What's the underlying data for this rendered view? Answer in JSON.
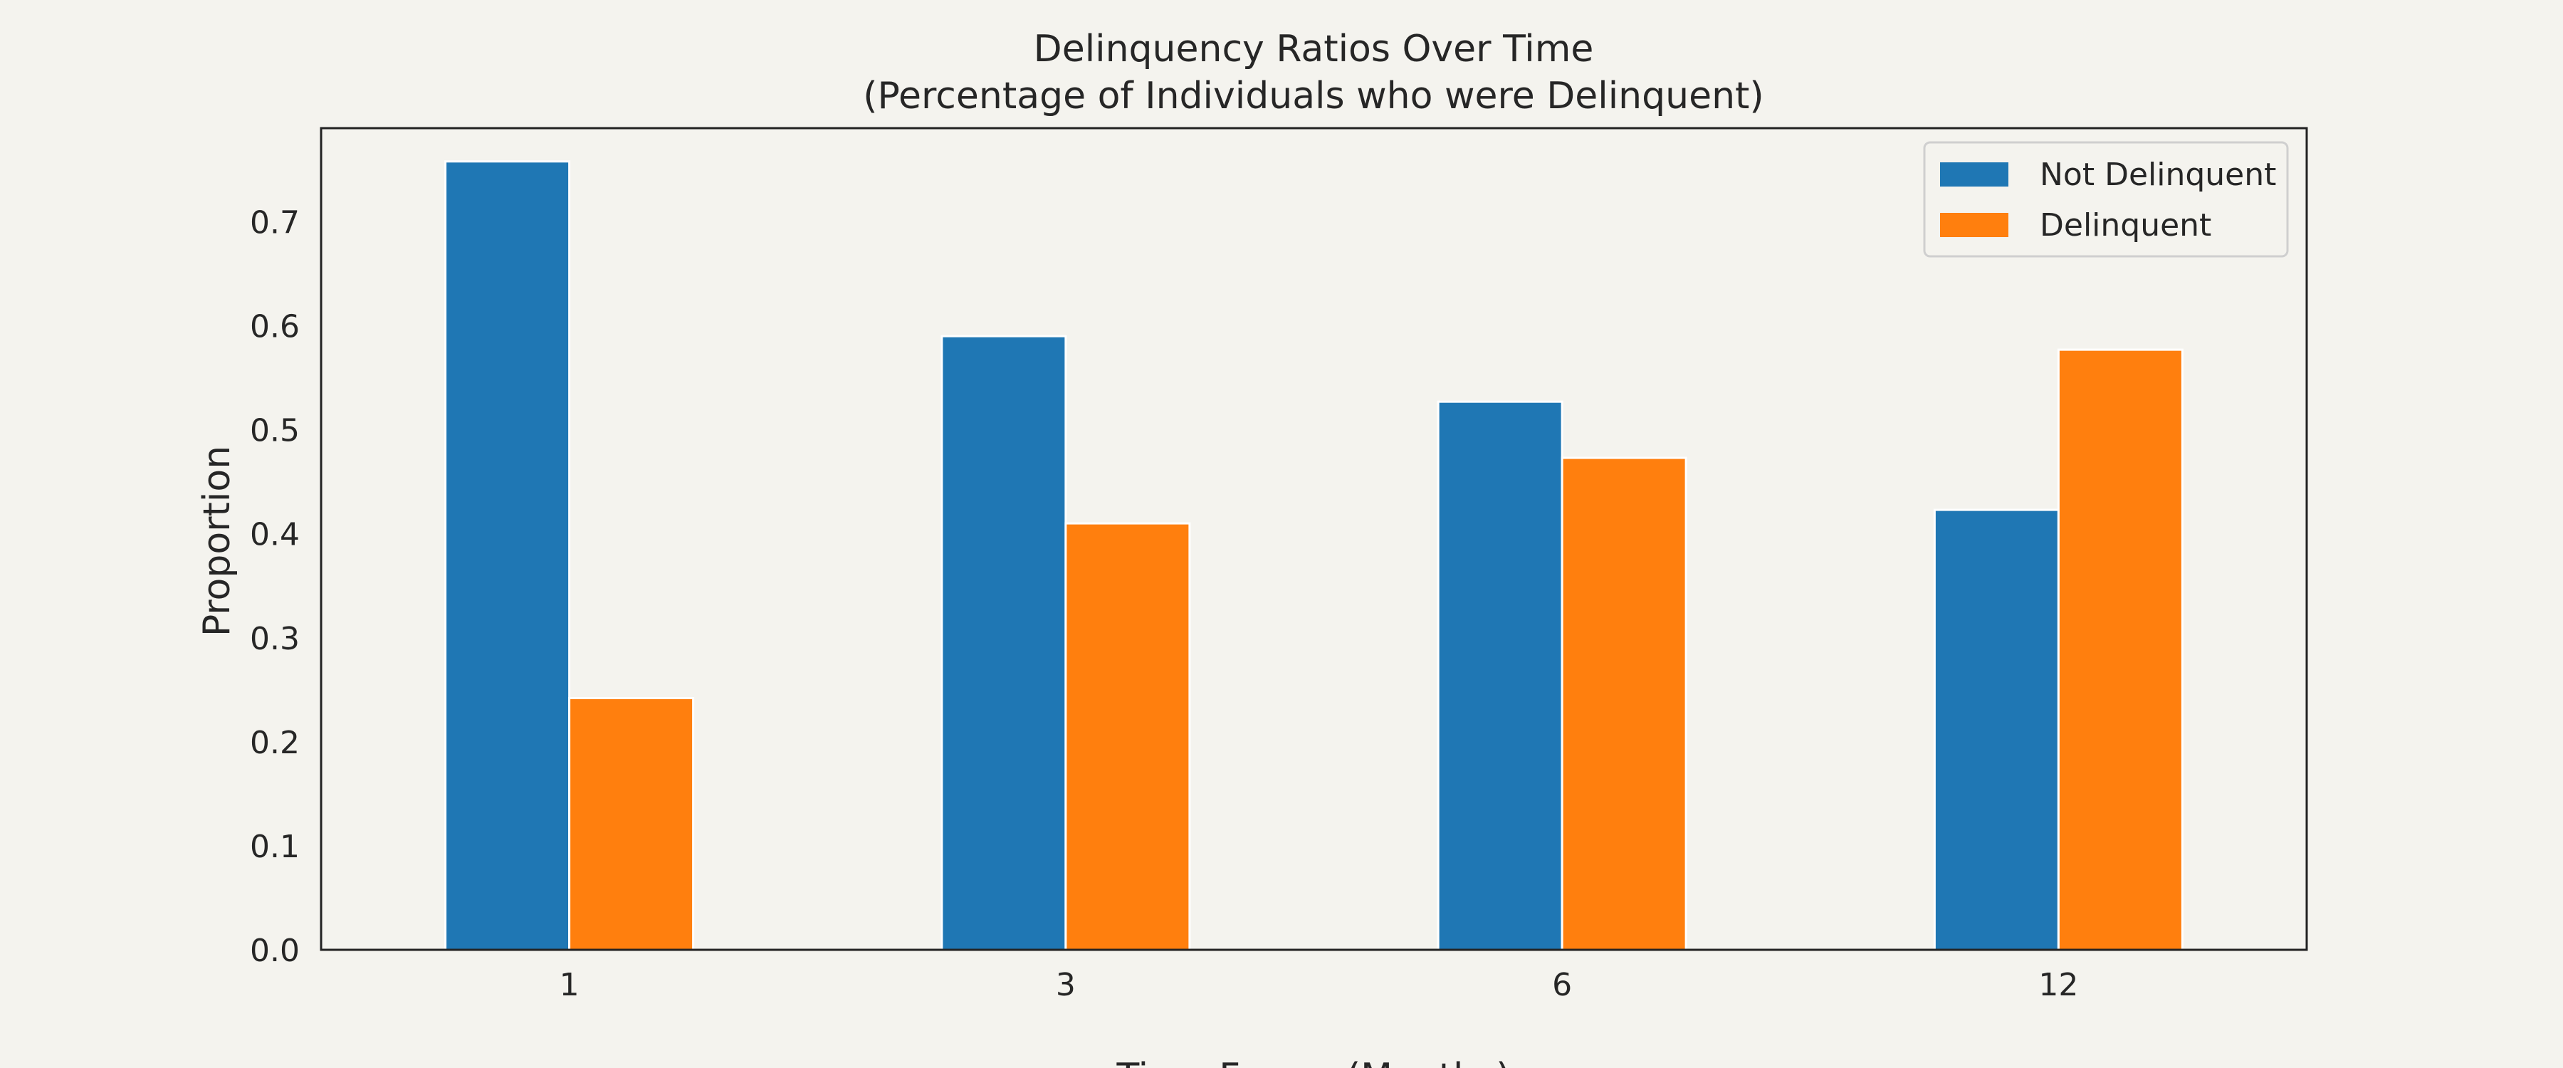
{
  "chart_data": {
    "type": "bar",
    "title": "Delinquency Ratios Over Time",
    "subtitle": "(Percentage of Individuals who were Delinquent)",
    "xlabel": "Time Frame (Months)",
    "ylabel": "Proportion",
    "categories": [
      "1",
      "3",
      "6",
      "12"
    ],
    "series": [
      {
        "name": "Not Delinquent",
        "color": "#1f77b4",
        "values": [
          0.758,
          0.59,
          0.527,
          0.423
        ]
      },
      {
        "name": "Delinquent",
        "color": "#ff7f0e",
        "values": [
          0.242,
          0.41,
          0.473,
          0.577
        ]
      }
    ],
    "ylim": [
      0,
      0.79
    ],
    "yticks": [
      "0.0",
      "0.1",
      "0.2",
      "0.3",
      "0.4",
      "0.5",
      "0.6",
      "0.7"
    ],
    "grid": false,
    "legend_position": "top-right"
  }
}
